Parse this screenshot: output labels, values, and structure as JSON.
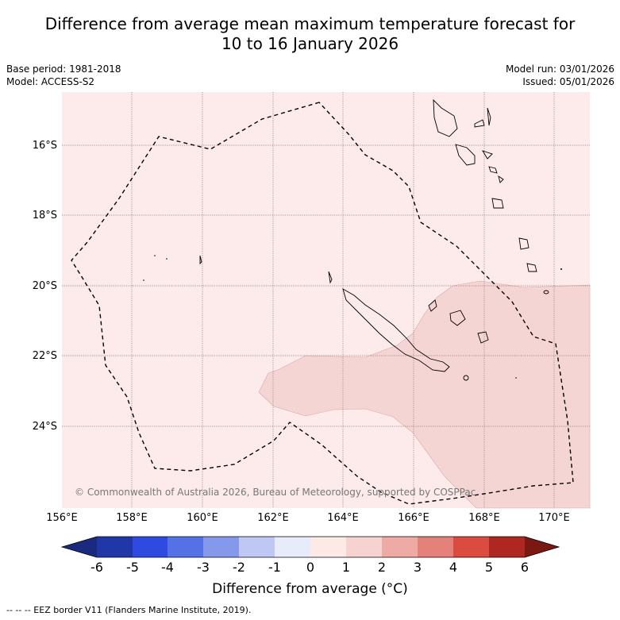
{
  "header": {
    "title_line1": "Difference from average mean maximum temperature forecast for",
    "title_line2": "10 to 16 January 2026"
  },
  "meta": {
    "base_period": "Base period: 1981-2018",
    "model": "Model: ACCESS-S2",
    "model_run": "Model run: 03/01/2026",
    "issued": "Issued: 05/01/2026"
  },
  "map": {
    "lat_labels": [
      "16°S",
      "18°S",
      "20°S",
      "22°S",
      "24°S"
    ],
    "lon_labels": [
      "156°E",
      "158°E",
      "160°E",
      "162°E",
      "164°E",
      "166°E",
      "168°E",
      "170°E"
    ],
    "copyright": "© Commonwealth of Australia 2026, Bureau of Meteorology, supported by COSPPac",
    "colors": {
      "background_anomaly": "#fcebea",
      "warm_anomaly": "#f5d5d4"
    }
  },
  "colorbar": {
    "ticks": [
      "-6",
      "-5",
      "-4",
      "-3",
      "-2",
      "-1",
      "0",
      "1",
      "2",
      "3",
      "4",
      "5",
      "6"
    ],
    "colors": [
      "#1a2a7e",
      "#2137a8",
      "#2e4ae0",
      "#5571e6",
      "#8698ec",
      "#bfc7f4",
      "#e8ebfa",
      "#fdeae6",
      "#f6d3d1",
      "#eeaaa5",
      "#e5817b",
      "#db4b40",
      "#ae2720",
      "#7a1812"
    ],
    "title": "Difference from average (°C)"
  },
  "footer": {
    "legend_text": "--  --  -- EEZ border V11 (Flanders Marine Institute, 2019)."
  }
}
